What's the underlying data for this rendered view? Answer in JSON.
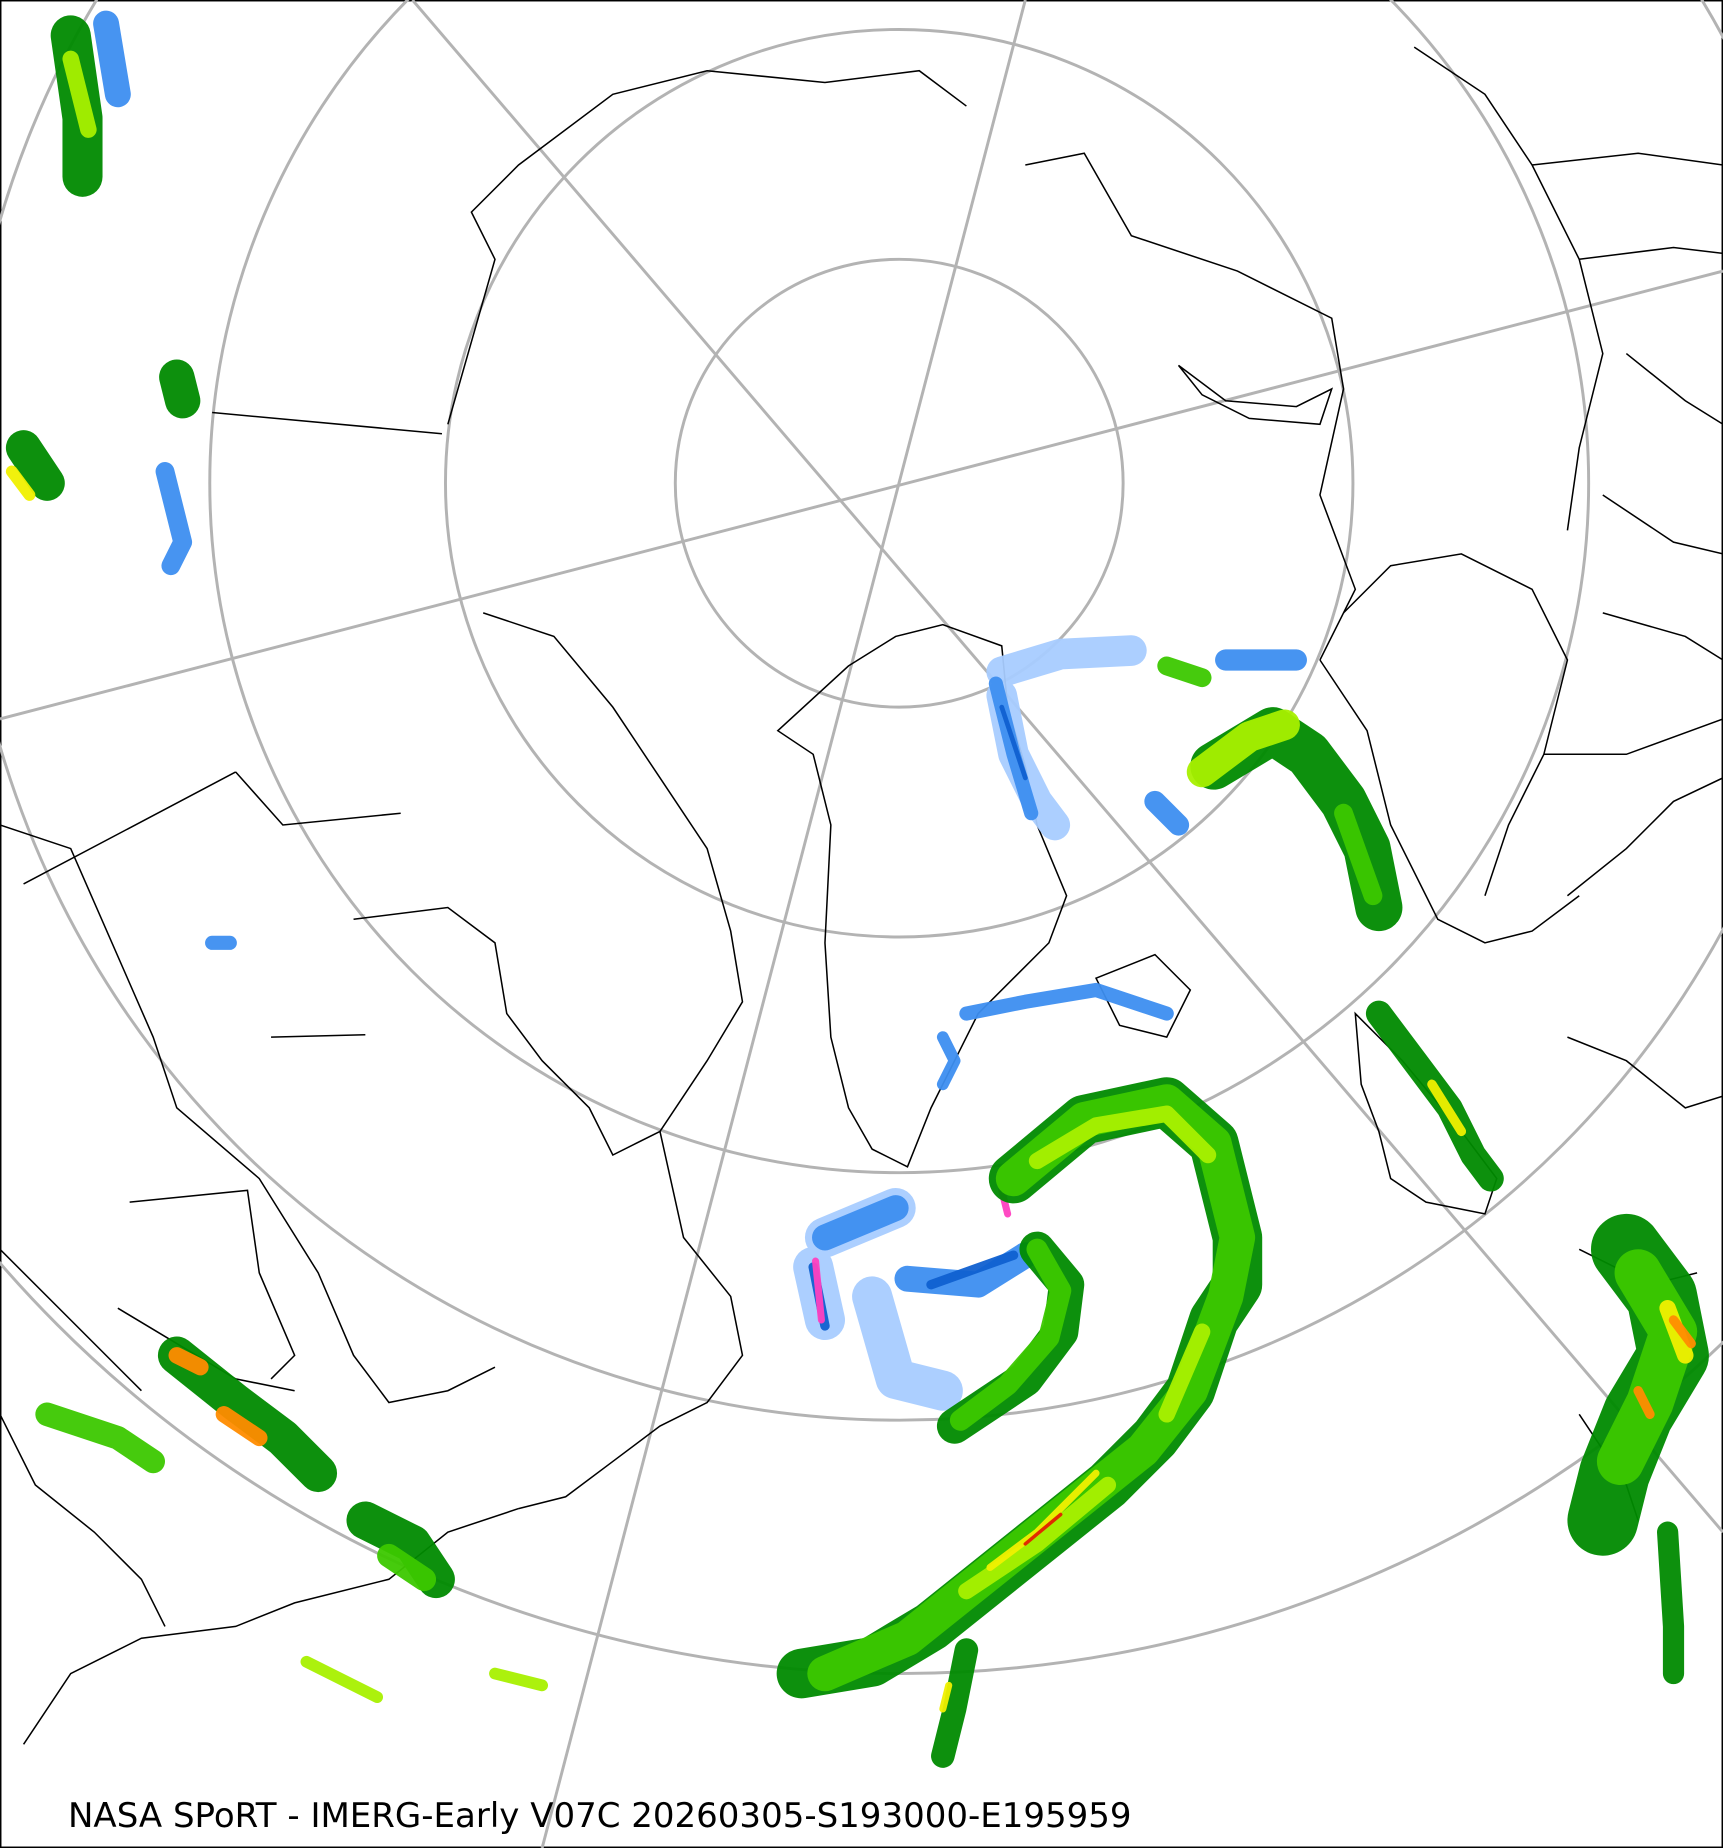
{
  "map": {
    "caption": "NASA SPoRT - IMERG-Early V07C 20260305-S193000-E195959",
    "projection": "north-polar-stereographic",
    "graticule_color": "#b3b3b3",
    "coastline_color": "#000000",
    "precip_colors": {
      "light_blue": "#a8ccff",
      "blue": "#3d8ef0",
      "dark_blue": "#1060d0",
      "dark_green": "#008a00",
      "green": "#3cc800",
      "light_green": "#a8f000",
      "yellow": "#f0f000",
      "orange": "#ff8c00",
      "red": "#e02000",
      "magenta": "#ff40c0"
    }
  }
}
